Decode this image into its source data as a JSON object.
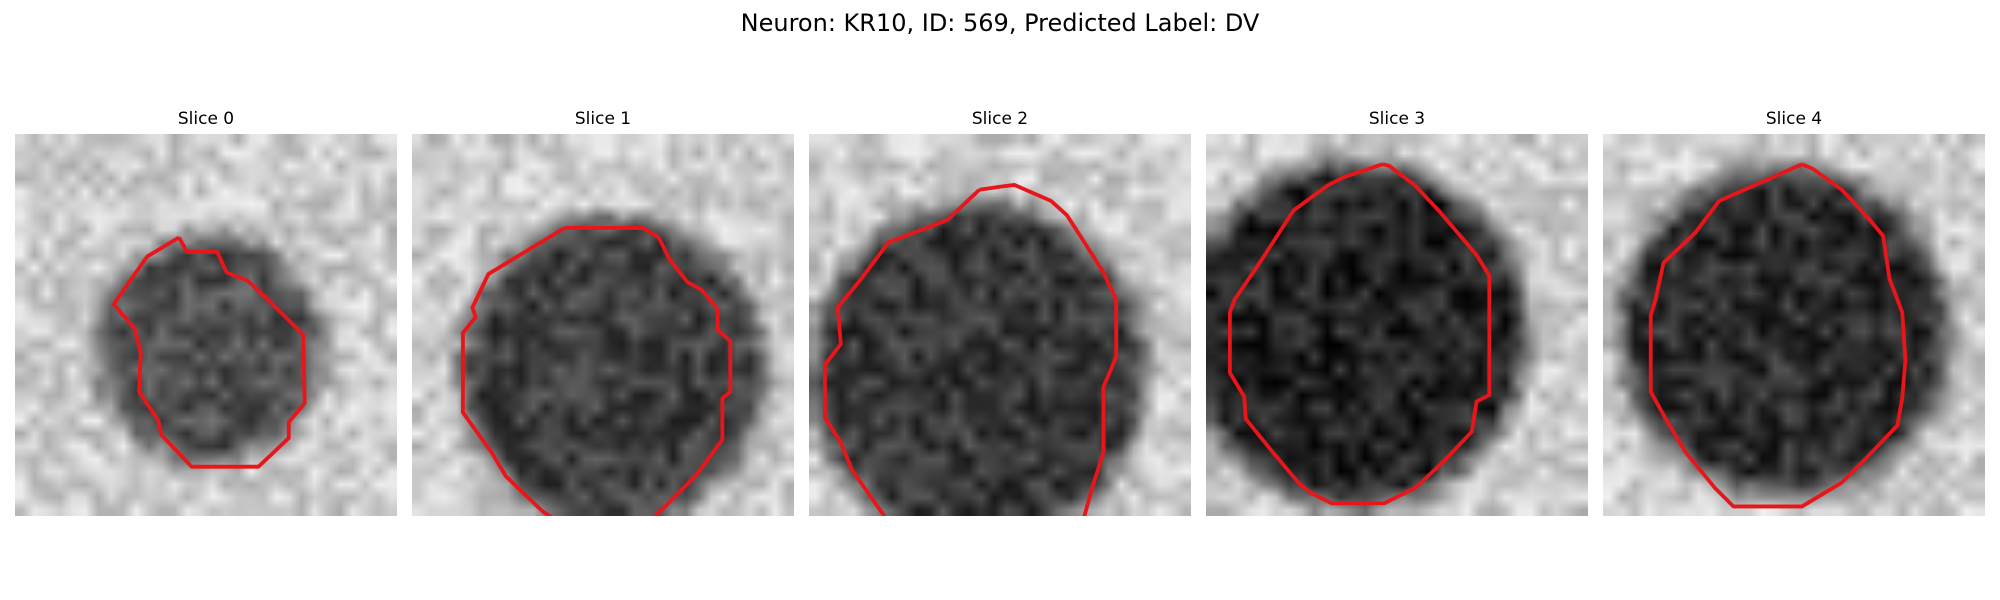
{
  "figure": {
    "title": "Neuron: KR10, ID: 569, Predicted Label: DV",
    "contour_color": "#e8161b"
  },
  "panels": [
    {
      "title": "Slice 0",
      "blob_radius": 0.3,
      "blob_darkness": 0.48,
      "contour": [
        [
          103,
          65
        ],
        [
          83,
          77
        ],
        [
          62,
          107
        ],
        [
          75,
          122
        ],
        [
          79,
          137
        ],
        [
          78,
          162
        ],
        [
          90,
          180
        ],
        [
          92,
          189
        ],
        [
          111,
          209
        ],
        [
          153,
          209
        ],
        [
          172,
          191
        ],
        [
          172,
          181
        ],
        [
          182,
          169
        ],
        [
          181,
          126
        ],
        [
          162,
          107
        ],
        [
          146,
          92
        ],
        [
          133,
          87
        ],
        [
          127,
          74
        ],
        [
          108,
          74
        ]
      ]
    },
    {
      "title": "Slice 1",
      "blob_radius": 0.4,
      "blob_darkness": 0.55,
      "contour": [
        [
          96,
          59
        ],
        [
          48,
          88
        ],
        [
          38,
          109
        ],
        [
          40,
          115
        ],
        [
          32,
          125
        ],
        [
          32,
          175
        ],
        [
          50,
          200
        ],
        [
          59,
          215
        ],
        [
          82,
          237
        ],
        [
          98,
          248
        ],
        [
          133,
          250
        ],
        [
          150,
          243
        ],
        [
          178,
          215
        ],
        [
          195,
          192
        ],
        [
          195,
          166
        ],
        [
          200,
          162
        ],
        [
          200,
          130
        ],
        [
          192,
          123
        ],
        [
          192,
          110
        ],
        [
          182,
          98
        ],
        [
          173,
          93
        ],
        [
          162,
          79
        ],
        [
          155,
          65
        ],
        [
          145,
          59
        ]
      ]
    },
    {
      "title": "Slice 2",
      "blob_radius": 0.44,
      "blob_darkness": 0.58,
      "contour": [
        [
          107,
          35
        ],
        [
          87,
          54
        ],
        [
          50,
          68
        ],
        [
          32,
          92
        ],
        [
          18,
          109
        ],
        [
          20,
          132
        ],
        [
          10,
          145
        ],
        [
          10,
          178
        ],
        [
          20,
          194
        ],
        [
          27,
          211
        ],
        [
          48,
          241
        ],
        [
          68,
          256
        ],
        [
          90,
          265
        ],
        [
          97,
          272
        ],
        [
          128,
          283
        ],
        [
          145,
          272
        ],
        [
          170,
          251
        ],
        [
          178,
          222
        ],
        [
          185,
          200
        ],
        [
          185,
          159
        ],
        [
          193,
          140
        ],
        [
          193,
          104
        ],
        [
          185,
          87
        ],
        [
          173,
          68
        ],
        [
          162,
          51
        ],
        [
          152,
          42
        ],
        [
          129,
          32
        ],
        [
          121,
          33
        ]
      ]
    },
    {
      "title": "Slice 3",
      "blob_radius": 0.45,
      "blob_darkness": 0.66,
      "contour": [
        [
          111,
          19
        ],
        [
          87,
          27
        ],
        [
          77,
          32
        ],
        [
          70,
          37
        ],
        [
          55,
          48
        ],
        [
          35,
          79
        ],
        [
          18,
          104
        ],
        [
          15,
          112
        ],
        [
          15,
          150
        ],
        [
          24,
          165
        ],
        [
          25,
          179
        ],
        [
          42,
          200
        ],
        [
          58,
          219
        ],
        [
          65,
          225
        ],
        [
          79,
          232
        ],
        [
          112,
          232
        ],
        [
          132,
          222
        ],
        [
          150,
          205
        ],
        [
          167,
          187
        ],
        [
          170,
          168
        ],
        [
          178,
          164
        ],
        [
          178,
          89
        ],
        [
          170,
          76
        ],
        [
          147,
          49
        ],
        [
          131,
          32
        ],
        [
          115,
          20
        ]
      ]
    },
    {
      "title": "Slice 4",
      "blob_radius": 0.43,
      "blob_darkness": 0.62,
      "contour": [
        [
          125,
          19
        ],
        [
          98,
          31
        ],
        [
          73,
          42
        ],
        [
          58,
          62
        ],
        [
          38,
          81
        ],
        [
          33,
          104
        ],
        [
          30,
          114
        ],
        [
          30,
          162
        ],
        [
          40,
          180
        ],
        [
          52,
          200
        ],
        [
          70,
          222
        ],
        [
          82,
          234
        ],
        [
          125,
          234
        ],
        [
          150,
          219
        ],
        [
          166,
          203
        ],
        [
          185,
          183
        ],
        [
          188,
          166
        ],
        [
          190,
          142
        ],
        [
          188,
          112
        ],
        [
          180,
          91
        ],
        [
          176,
          64
        ],
        [
          166,
          52
        ],
        [
          150,
          35
        ],
        [
          132,
          22
        ]
      ]
    }
  ]
}
